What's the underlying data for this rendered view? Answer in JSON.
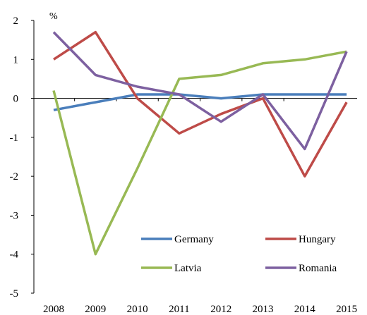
{
  "chart_data": {
    "type": "line",
    "y_unit_label": "%",
    "x": [
      "2008",
      "2009",
      "2010",
      "2011",
      "2012",
      "2013",
      "2014",
      "2015"
    ],
    "ylim": [
      -5,
      2
    ],
    "yticks": [
      "2",
      "1",
      "0",
      "-1",
      "-2",
      "-3",
      "-4",
      "-5"
    ],
    "ytick_values": [
      2,
      1,
      0,
      -1,
      -2,
      -3,
      -4,
      -5
    ],
    "grid": false,
    "legend_position": "bottom-right",
    "series": [
      {
        "name": "Germany",
        "color": "#4a7ebb",
        "values": [
          -0.3,
          -0.1,
          0.1,
          0.1,
          0.0,
          0.1,
          0.1,
          0.1
        ]
      },
      {
        "name": "Hungary",
        "color": "#be4b48",
        "values": [
          1.0,
          1.7,
          0.0,
          -0.9,
          -0.4,
          0.0,
          -2.0,
          -0.1
        ]
      },
      {
        "name": "Latvia",
        "color": "#98b954",
        "values": [
          0.2,
          -4.0,
          -1.8,
          0.5,
          0.6,
          0.9,
          1.0,
          1.2
        ]
      },
      {
        "name": "Romania",
        "color": "#7d60a0",
        "values": [
          1.7,
          0.6,
          0.3,
          0.1,
          -0.6,
          0.1,
          -1.3,
          1.2
        ]
      }
    ]
  }
}
